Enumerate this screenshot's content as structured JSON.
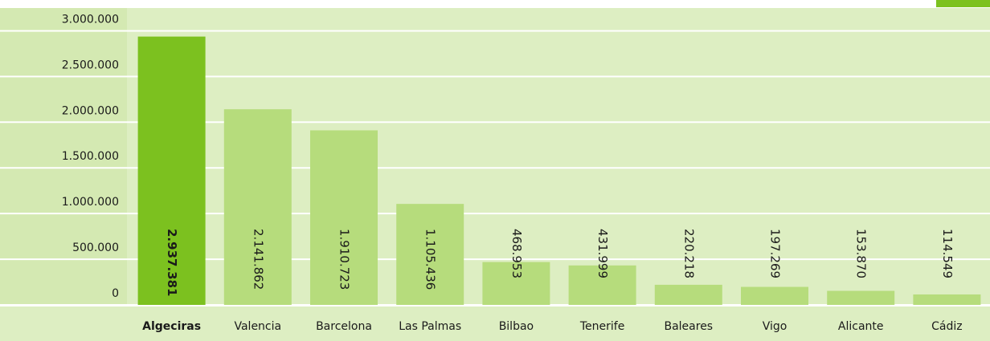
{
  "chart_data": {
    "type": "bar",
    "categories": [
      "Algeciras",
      "Valencia",
      "Barcelona",
      "Las Palmas",
      "Bilbao",
      "Tenerife",
      "Baleares",
      "Vigo",
      "Alicante",
      "Cádiz"
    ],
    "values": [
      2937381,
      2141862,
      1910723,
      1105436,
      468953,
      431999,
      220218,
      197269,
      153870,
      114549
    ],
    "value_labels": [
      "2.937.381",
      "2.141.862",
      "1.910.723",
      "1.105.436",
      "468.953",
      "431.999",
      "220.218",
      "197.269",
      "153.870",
      "114.549"
    ],
    "colors": [
      "#7cc11f",
      "#b6dc7c",
      "#b6dc7c",
      "#b6dc7c",
      "#b6dc7c",
      "#b6dc7c",
      "#b6dc7c",
      "#b6dc7c",
      "#b6dc7c",
      "#b6dc7c"
    ],
    "ylim": [
      0,
      3250000
    ],
    "yticks": [
      0,
      {
        "value": 500000,
        "label": "500.000"
      },
      {
        "value": 1000000,
        "label": "1.000.000"
      },
      {
        "value": 1500000,
        "label": "1.500.000"
      },
      {
        "value": 2000000,
        "label": "2.000.000"
      },
      {
        "value": 2500000,
        "label": "2.500.000"
      },
      {
        "value": 3000000,
        "label": "3.000.000"
      }
    ],
    "grid": true
  }
}
